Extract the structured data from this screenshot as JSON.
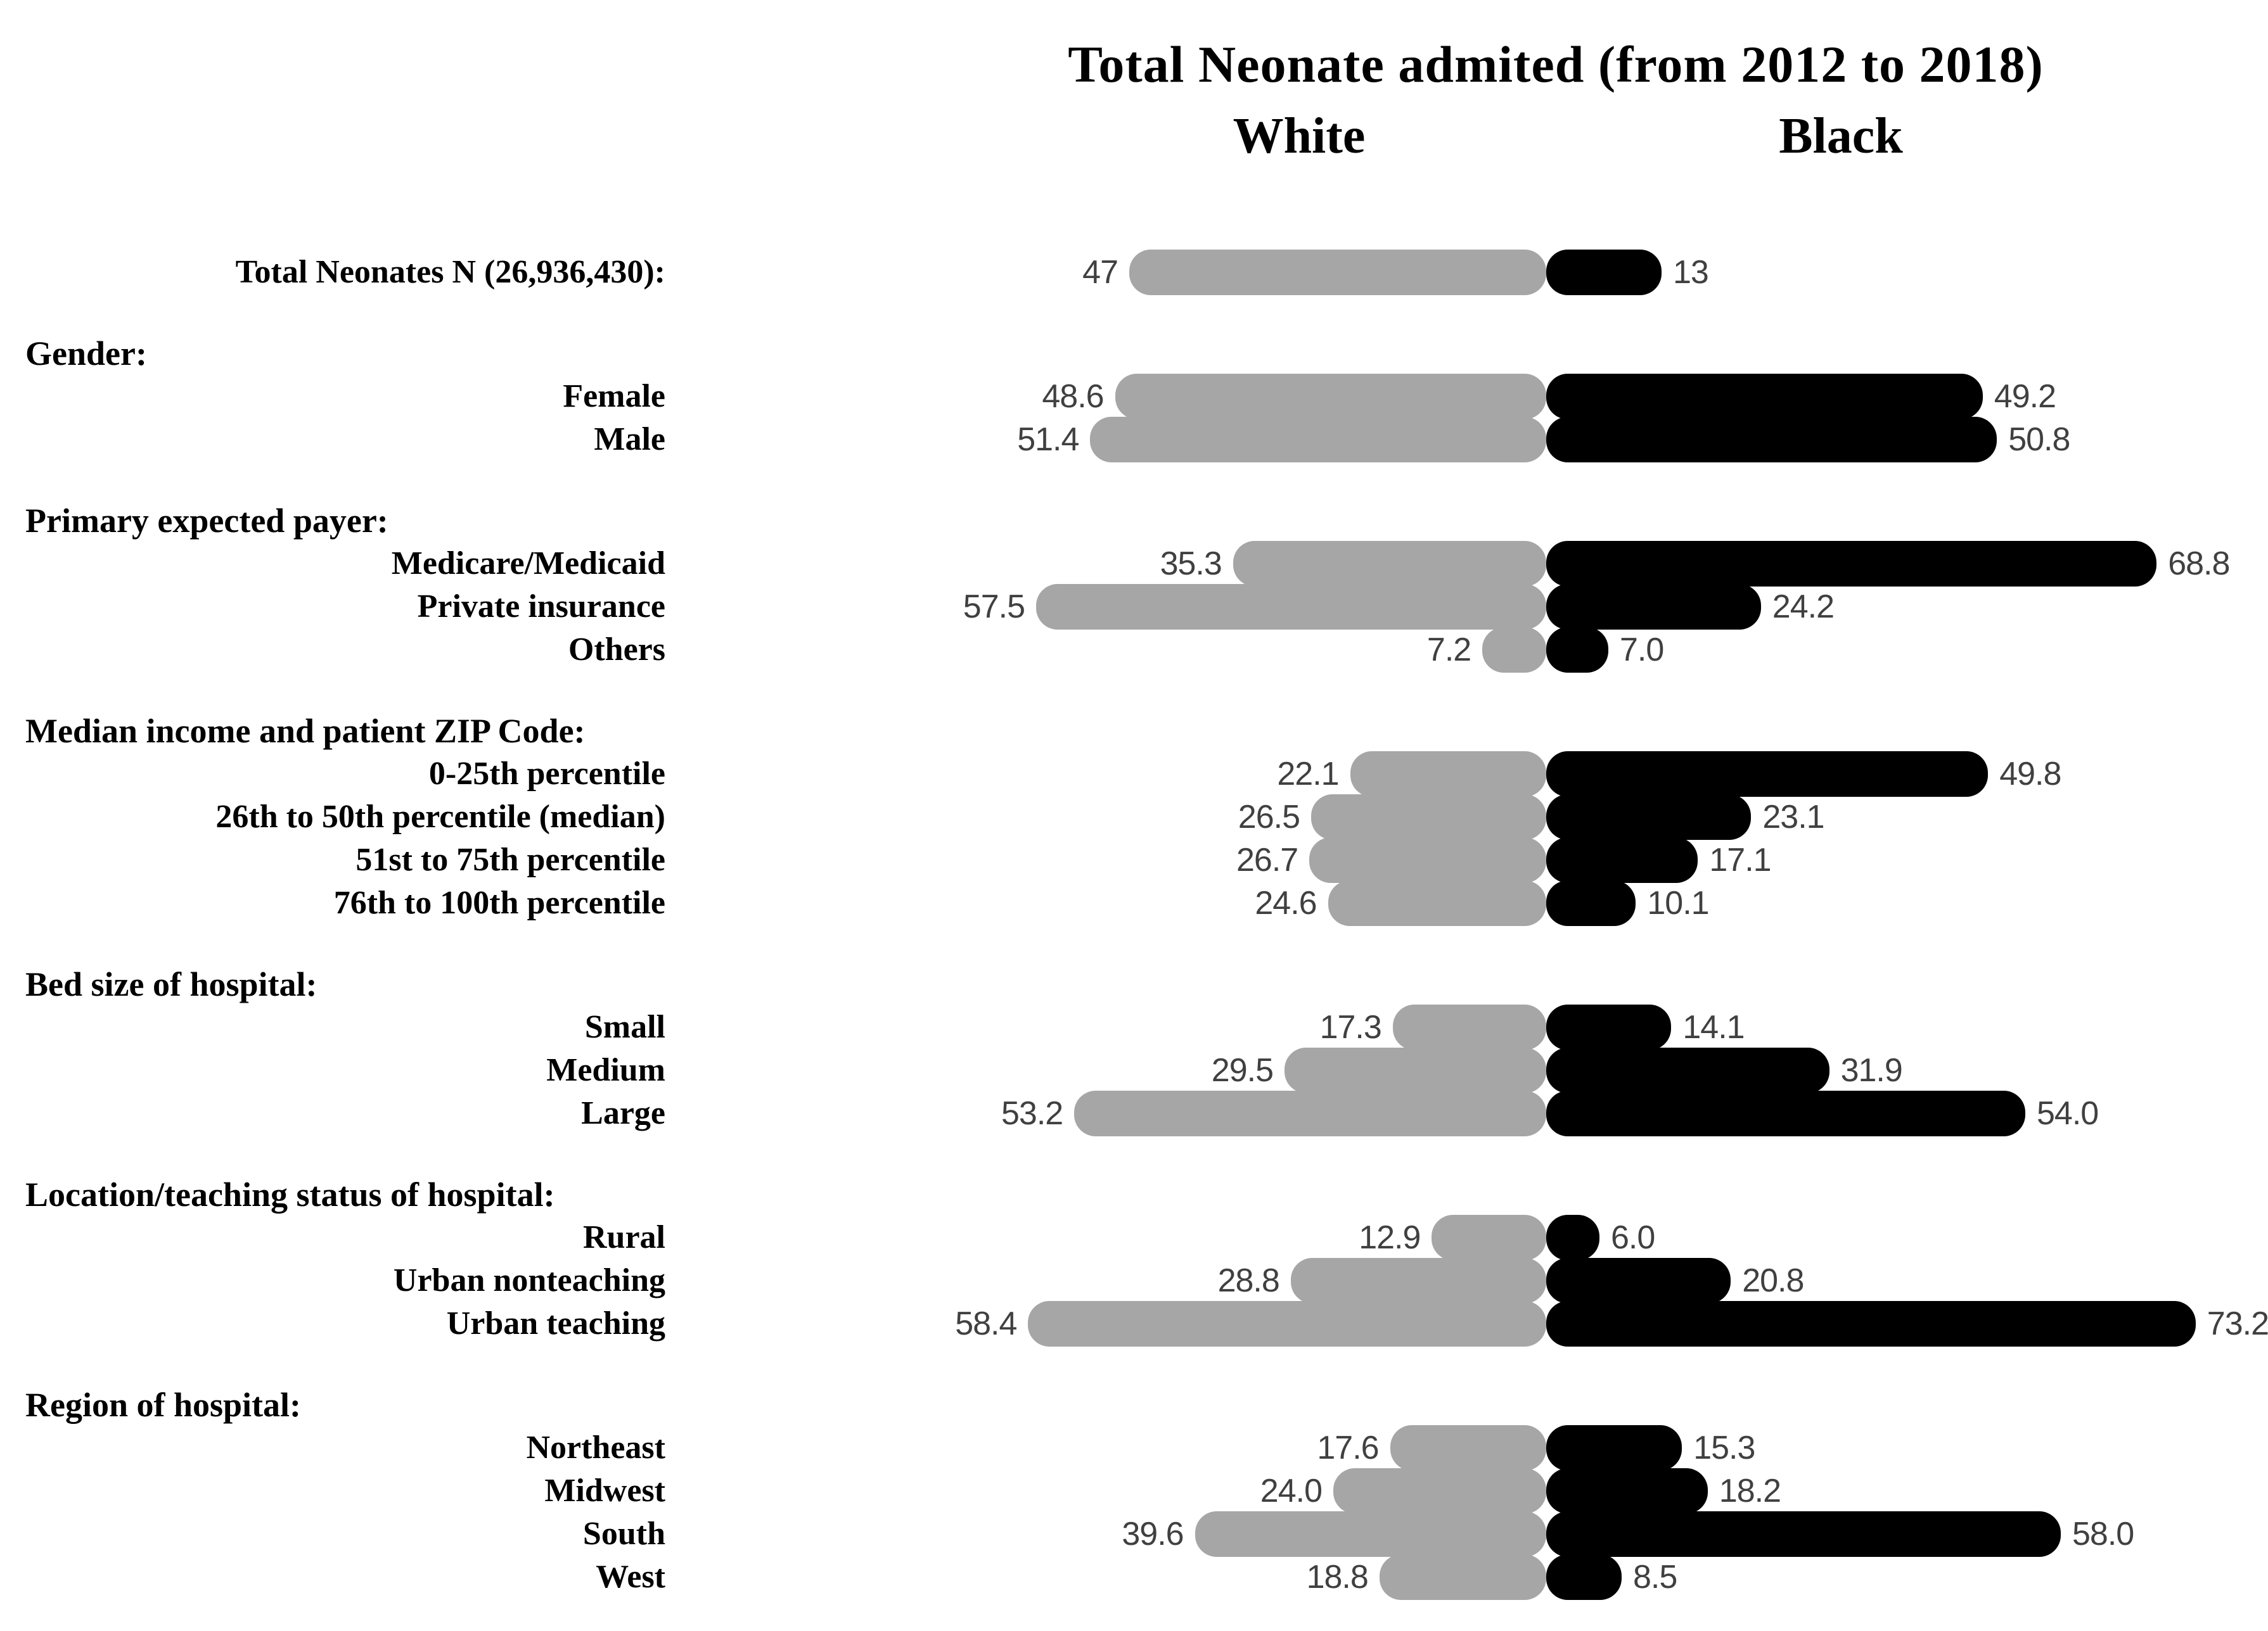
{
  "title": "Total Neonate admited (from 2012 to 2018)",
  "columns": {
    "left": "White",
    "right": "Black"
  },
  "colors": {
    "white_series_bar": "#a6a6a6",
    "black_series_bar": "#000000",
    "value_label_text": "#404040",
    "label_text": "#000000",
    "background": "#ffffff"
  },
  "chart_data": {
    "type": "bar",
    "variant": "diverging-horizontal-butterfly",
    "title": "Total Neonate admited (from 2012 to 2018)",
    "legend": [
      "White",
      "Black"
    ],
    "legend_position": "top",
    "grid": false,
    "axis_labels_visible": false,
    "units": "percent share (value labels at bar ends)",
    "series_orientation": "White extends left, Black extends right from center axis",
    "groups": [
      {
        "header": null,
        "items": [
          {
            "label": "Total Neonates N (26,936,430):",
            "white": 47,
            "black": 13,
            "white_label": "47",
            "black_label": "13"
          }
        ]
      },
      {
        "header": "Gender:",
        "items": [
          {
            "label": "Female",
            "white": 48.6,
            "black": 49.2,
            "white_label": "48.6",
            "black_label": "49.2"
          },
          {
            "label": "Male",
            "white": 51.4,
            "black": 50.8,
            "white_label": "51.4",
            "black_label": "50.8"
          }
        ]
      },
      {
        "header": "Primary expected payer:",
        "items": [
          {
            "label": "Medicare/Medicaid",
            "white": 35.3,
            "black": 68.8,
            "white_label": "35.3",
            "black_label": "68.8"
          },
          {
            "label": "Private insurance",
            "white": 57.5,
            "black": 24.2,
            "white_label": "57.5",
            "black_label": "24.2"
          },
          {
            "label": "Others",
            "white": 7.2,
            "black": 7.0,
            "white_label": "7.2",
            "black_label": "7.0"
          }
        ]
      },
      {
        "header": "Median income and patient ZIP Code:",
        "items": [
          {
            "label": "0-25th percentile",
            "white": 22.1,
            "black": 49.8,
            "white_label": "22.1",
            "black_label": "49.8"
          },
          {
            "label": "26th to 50th percentile (median)",
            "white": 26.5,
            "black": 23.1,
            "white_label": "26.5",
            "black_label": "23.1"
          },
          {
            "label": "51st to 75th percentile",
            "white": 26.7,
            "black": 17.1,
            "white_label": "26.7",
            "black_label": "17.1"
          },
          {
            "label": "76th to 100th percentile",
            "white": 24.6,
            "black": 10.1,
            "white_label": "24.6",
            "black_label": "10.1"
          }
        ]
      },
      {
        "header": "Bed size of hospital:",
        "items": [
          {
            "label": "Small",
            "white": 17.3,
            "black": 14.1,
            "white_label": "17.3",
            "black_label": "14.1"
          },
          {
            "label": "Medium",
            "white": 29.5,
            "black": 31.9,
            "white_label": "29.5",
            "black_label": "31.9"
          },
          {
            "label": "Large",
            "white": 53.2,
            "black": 54.0,
            "white_label": "53.2",
            "black_label": "54.0"
          }
        ]
      },
      {
        "header": "Location/teaching status of hospital:",
        "items": [
          {
            "label": "Rural",
            "white": 12.9,
            "black": 6.0,
            "white_label": "12.9",
            "black_label": "6.0"
          },
          {
            "label": "Urban nonteaching",
            "white": 28.8,
            "black": 20.8,
            "white_label": "28.8",
            "black_label": "20.8"
          },
          {
            "label": "Urban teaching",
            "white": 58.4,
            "black": 73.2,
            "white_label": "58.4",
            "black_label": "73.2"
          }
        ]
      },
      {
        "header": "Region of hospital:",
        "items": [
          {
            "label": "Northeast",
            "white": 17.6,
            "black": 15.3,
            "white_label": "17.6",
            "black_label": "15.3"
          },
          {
            "label": "Midwest",
            "white": 24.0,
            "black": 18.2,
            "white_label": "24.0",
            "black_label": "18.2"
          },
          {
            "label": "South",
            "white": 39.6,
            "black": 58.0,
            "white_label": "39.6",
            "black_label": "58.0"
          },
          {
            "label": "West",
            "white": 18.8,
            "black": 8.5,
            "white_label": "18.8",
            "black_label": "8.5"
          }
        ]
      }
    ]
  }
}
